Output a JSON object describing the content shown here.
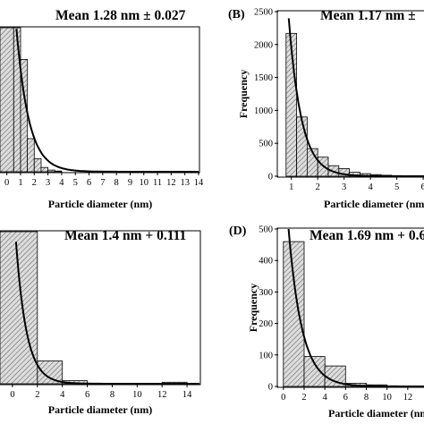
{
  "chart_data": [
    {
      "type": "bar",
      "panel_label": "",
      "title": "Mean 1.28 nm ± 0.027",
      "xlabel": "Particle diameter (nm)",
      "ylabel": "",
      "xlim": [
        -0.5,
        14
      ],
      "ylim": [
        0,
        1000
      ],
      "xticks": [
        "0",
        "1",
        "2",
        "3",
        "4",
        "5",
        "6",
        "7",
        "8",
        "9",
        "10",
        "11",
        "12",
        "13",
        "14"
      ],
      "yticks": [],
      "bin_edges": [
        -0.5,
        0.5,
        1.0,
        1.5,
        2.0,
        2.5,
        3.0,
        3.5,
        4.0
      ],
      "values": [
        1000,
        1000,
        780,
        230,
        90,
        30,
        12,
        5
      ],
      "fit_curve": {
        "type": "exponential",
        "a": 2160,
        "tau": 0.9,
        "x0": 0
      }
    },
    {
      "type": "bar",
      "panel_label": "(B)",
      "title": "Mean 1.17 nm ±",
      "xlabel": "Particle diameter (nm",
      "ylabel": "Frequency",
      "xlim": [
        0.5,
        6.2
      ],
      "ylim": [
        0,
        2500
      ],
      "xticks": [
        "1",
        "2",
        "3",
        "4",
        "5",
        "6"
      ],
      "yticks": [
        "0",
        "500",
        "1000",
        "1500",
        "2000",
        "2500"
      ],
      "bin_edges": [
        0.8,
        1.2,
        1.6,
        2.0,
        2.4,
        2.8,
        3.2,
        3.6,
        4.0,
        4.4,
        4.8,
        5.2,
        5.6
      ],
      "values": [
        2170,
        900,
        420,
        290,
        160,
        115,
        60,
        40,
        25,
        15,
        10,
        5
      ],
      "fit_curve": {
        "type": "exponential",
        "a": 2400,
        "tau": 0.48,
        "x0": 0.9
      }
    },
    {
      "type": "bar",
      "panel_label": "",
      "title": "Mean 1.4 nm + 0.111",
      "xlabel": "Particle diameter (nm)",
      "ylabel": "",
      "xlim": [
        -1,
        15
      ],
      "ylim": [
        0,
        100
      ],
      "xticks": [
        "0",
        "2",
        "4",
        "6",
        "8",
        "10",
        "12",
        "14"
      ],
      "yticks": [],
      "bin_edges": [
        -1,
        2,
        4,
        6,
        12,
        14
      ],
      "values": [
        100,
        15,
        2,
        0,
        1
      ],
      "fit_curve": {
        "type": "exponential",
        "a": 130,
        "tau": 0.85,
        "x0": 0
      }
    },
    {
      "type": "bar",
      "panel_label": "(D)",
      "title": "Mean 1.69 nm + 0.6",
      "xlabel": "Particle diameter (nm",
      "ylabel": "Frequency",
      "xlim": [
        -0.5,
        14
      ],
      "ylim": [
        0,
        500
      ],
      "xticks": [
        "0",
        "2",
        "4",
        "6",
        "8",
        "10",
        "12",
        "14"
      ],
      "yticks": [
        "0",
        "100",
        "200",
        "300",
        "400",
        "500"
      ],
      "bin_edges": [
        0,
        2,
        4,
        6,
        8,
        10
      ],
      "values": [
        460,
        95,
        65,
        10,
        5
      ],
      "fit_curve": {
        "type": "exponential",
        "a": 500,
        "tau": 1.3,
        "x0": 0.5
      }
    }
  ]
}
